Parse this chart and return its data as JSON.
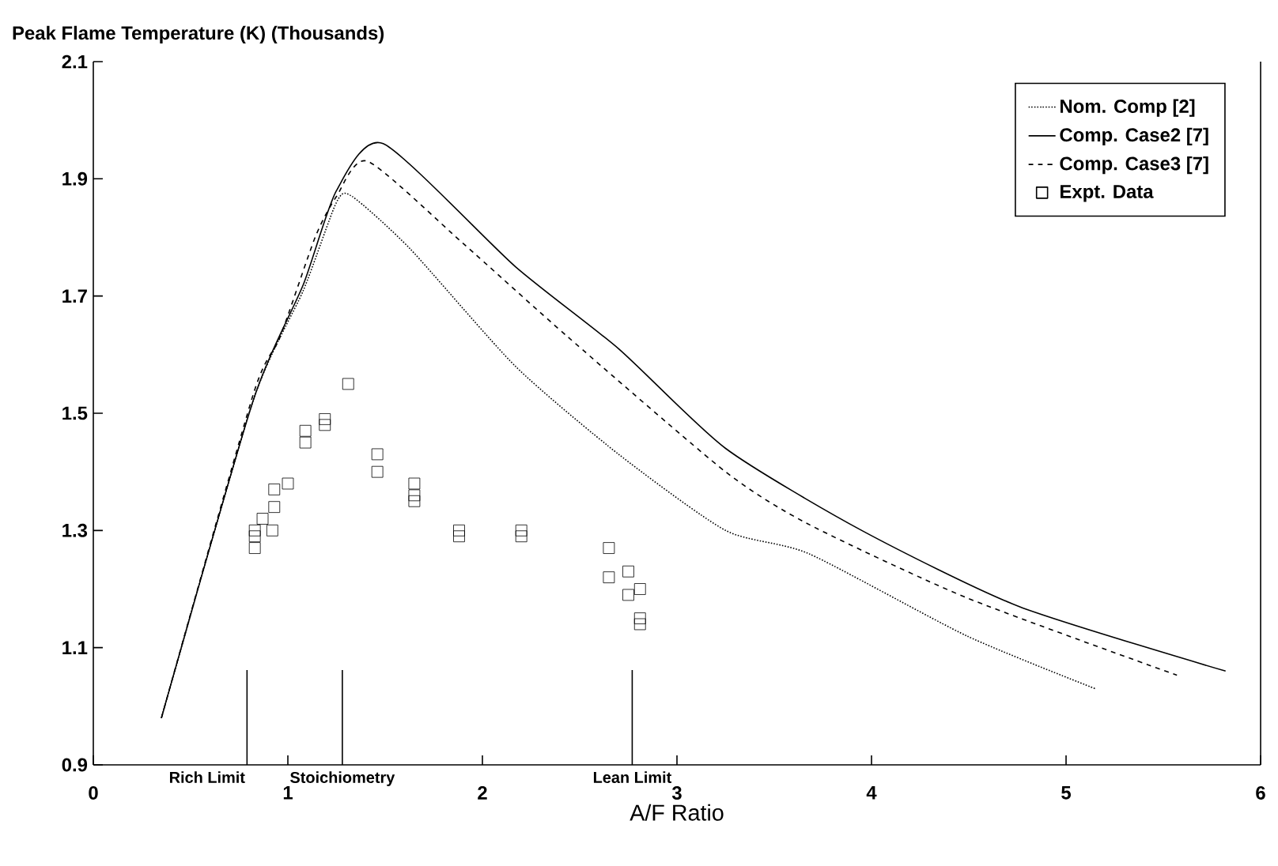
{
  "chart_data": {
    "type": "line",
    "title": "Peak Flame Temperature (K) (Thousands)",
    "xlabel": "A/F Ratio",
    "xlim": [
      0,
      6
    ],
    "ylim": [
      0.9,
      2.1
    ],
    "xticks": [
      0,
      1,
      2,
      3,
      4,
      5,
      6
    ],
    "yticks": [
      0.9,
      1.1,
      1.3,
      1.5,
      1.7,
      1.9,
      2.1
    ],
    "grid": false,
    "legend": "top right",
    "series": [
      {
        "name": "Nom. Comp [2]",
        "color": "#000000",
        "line_style": "dotted",
        "marker": "none",
        "x": [
          0.35,
          0.82,
          1.08,
          1.25,
          1.33,
          1.63,
          2.17,
          2.7,
          3.25,
          3.68,
          4.49,
          5.15
        ],
        "values": [
          0.98,
          1.52,
          1.71,
          1.86,
          1.87,
          1.78,
          1.58,
          1.43,
          1.3,
          1.26,
          1.12,
          1.03
        ]
      },
      {
        "name": "Comp. Case2 [7]",
        "color": "#000000",
        "line_style": "solid",
        "marker": "none",
        "x": [
          0.35,
          0.82,
          1.08,
          1.25,
          1.49,
          2.17,
          2.7,
          3.25,
          3.95,
          4.76,
          5.82
        ],
        "values": [
          0.98,
          1.52,
          1.72,
          1.88,
          1.96,
          1.75,
          1.61,
          1.44,
          1.3,
          1.17,
          1.06
        ]
      },
      {
        "name": "Comp. Case3 [7]",
        "color": "#000000",
        "line_style": "dashed",
        "marker": "none",
        "x": [
          0.35,
          0.82,
          0.96,
          1.14,
          1.25,
          1.41,
          1.9,
          2.44,
          3.25,
          3.68,
          4.49,
          5.57
        ],
        "values": [
          0.98,
          1.53,
          1.63,
          1.8,
          1.87,
          1.93,
          1.79,
          1.63,
          1.4,
          1.31,
          1.185,
          1.053
        ]
      },
      {
        "name": "Expt. Data",
        "type": "scatter",
        "color": "#000000",
        "marker": "square",
        "x": [
          0.83,
          0.83,
          0.83,
          0.87,
          0.92,
          0.93,
          0.93,
          1.0,
          1.09,
          1.09,
          1.19,
          1.19,
          1.31,
          1.46,
          1.46,
          1.65,
          1.65,
          1.65,
          1.88,
          1.88,
          2.2,
          2.2,
          2.65,
          2.65,
          2.75,
          2.75,
          2.81,
          2.81,
          2.81
        ],
        "values": [
          1.3,
          1.29,
          1.27,
          1.32,
          1.3,
          1.37,
          1.34,
          1.38,
          1.47,
          1.45,
          1.49,
          1.48,
          1.55,
          1.43,
          1.4,
          1.38,
          1.36,
          1.35,
          1.3,
          1.29,
          1.3,
          1.29,
          1.27,
          1.22,
          1.23,
          1.19,
          1.2,
          1.15,
          1.14
        ]
      }
    ],
    "ref_lines": [
      {
        "axis": "x",
        "value": 0.79,
        "label": "Rich Limit"
      },
      {
        "axis": "x",
        "value": 1.28,
        "label": "Stoichiometry"
      },
      {
        "axis": "x",
        "value": 2.77,
        "label": "Lean Limit"
      }
    ]
  }
}
